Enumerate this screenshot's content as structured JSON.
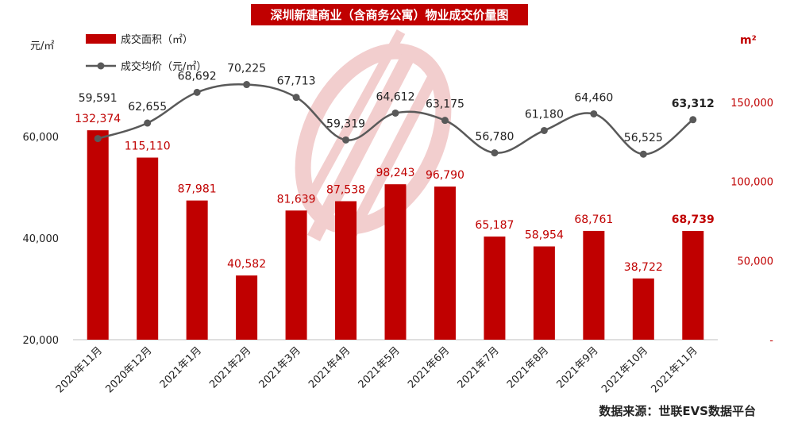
{
  "title": "深圳新建商业（含商务公寓）物业成交价量图",
  "source": "数据来源：世联EVS数据平台",
  "colors": {
    "bar": "#c00000",
    "line": "#595959",
    "watermark": "#e8a7a7"
  },
  "chart_data": {
    "type": "bar",
    "categories": [
      "2020年11月",
      "2020年12月",
      "2021年1月",
      "2021年2月",
      "2021年3月",
      "2021年4月",
      "2021年5月",
      "2021年6月",
      "2021年7月",
      "2021年8月",
      "2021年9月",
      "2021年10月",
      "2021年11月"
    ],
    "series": [
      {
        "name": "成交面积（㎡）",
        "type": "bar",
        "axis": "right",
        "values": [
          132374,
          115110,
          87981,
          40582,
          81639,
          87538,
          98243,
          96790,
          65187,
          58954,
          68761,
          38722,
          68739
        ],
        "labels": [
          "132,374",
          "115,110",
          "87,981",
          "40,582",
          "81,639",
          "87,538",
          "98,243",
          "96,790",
          "65,187",
          "58,954",
          "68,761",
          "38,722",
          "68,739"
        ]
      },
      {
        "name": "成交均价（元/㎡）",
        "type": "line",
        "axis": "left",
        "values": [
          59591,
          62655,
          68692,
          70225,
          67713,
          59319,
          64612,
          63175,
          56780,
          61180,
          64460,
          56525,
          63312
        ],
        "labels": [
          "59,591",
          "62,655",
          "68,692",
          "70,225",
          "67,713",
          "59,319",
          "64,612",
          "63,175",
          "56,780",
          "61,180",
          "64,460",
          "56,525",
          "63,312"
        ]
      }
    ],
    "left_axis": {
      "unit": "元/㎡",
      "ticks": [
        20000,
        40000,
        60000
      ],
      "tick_labels": [
        "20,000",
        "40,000",
        "60,000"
      ],
      "range": [
        20000,
        80000
      ]
    },
    "right_axis": {
      "unit": "m²",
      "ticks": [
        0,
        50000,
        100000,
        150000
      ],
      "tick_labels": [
        "-",
        "50,000",
        "100,000",
        "150,000"
      ],
      "range": [
        0,
        200000
      ]
    },
    "legend_position": "top-left",
    "grid": false
  }
}
